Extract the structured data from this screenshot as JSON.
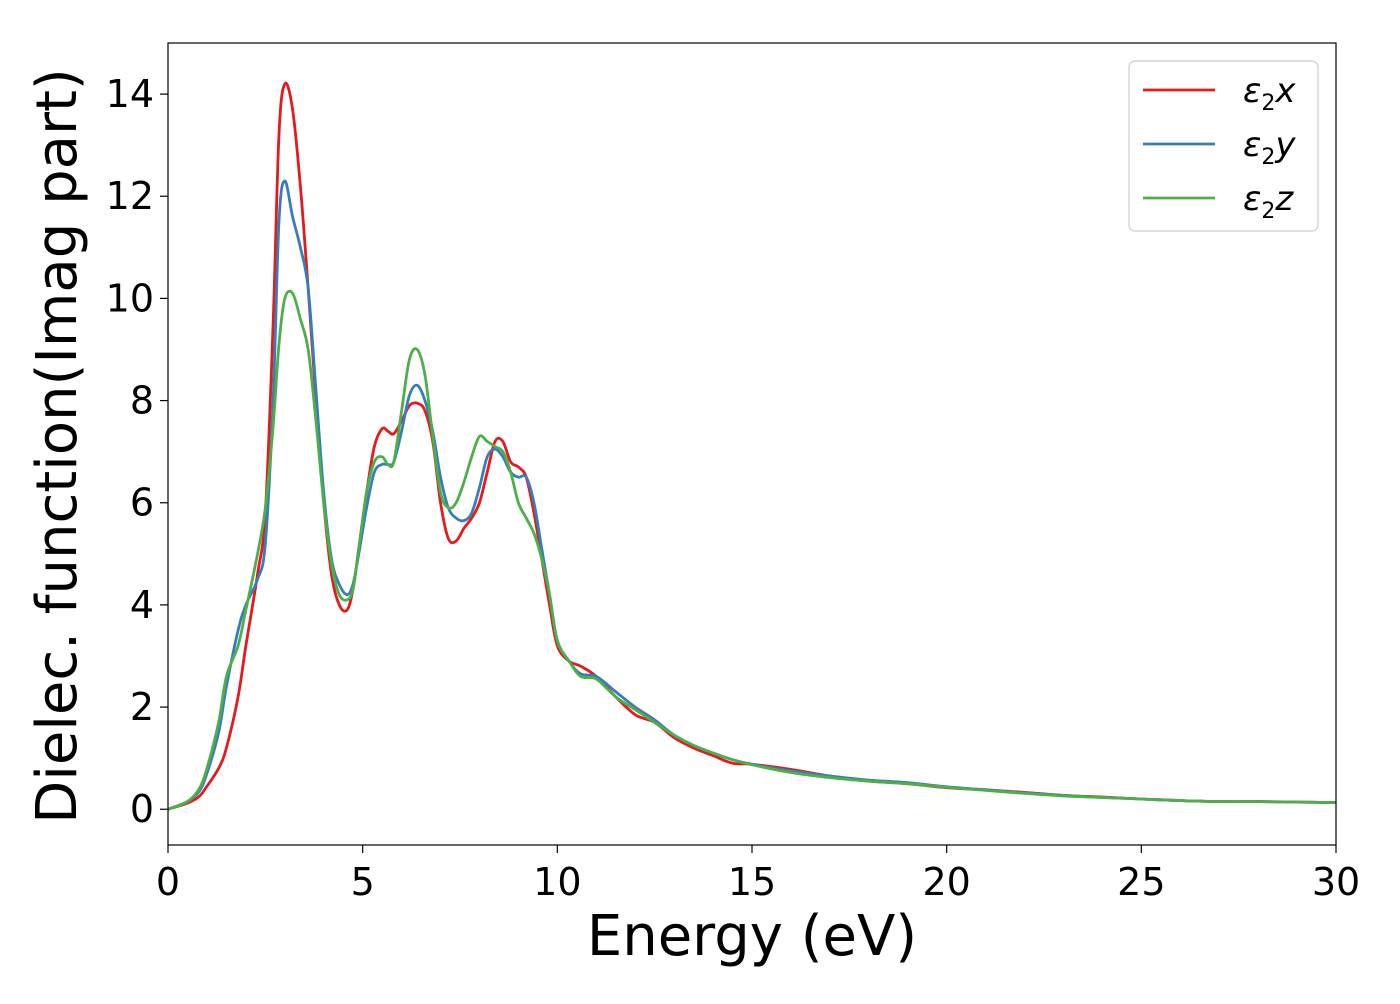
{
  "chart_data": {
    "type": "line",
    "title": "",
    "xlabel": "Energy (eV)",
    "ylabel": "Dielec. function(Imag part)",
    "xlim": [
      0,
      30
    ],
    "ylim": [
      -0.7,
      15
    ],
    "xticks": [
      0,
      5,
      10,
      15,
      20,
      25,
      30
    ],
    "yticks": [
      0,
      2,
      4,
      6,
      8,
      10,
      12,
      14
    ],
    "xtick_labels": [
      "0",
      "5",
      "10",
      "15",
      "20",
      "25",
      "30"
    ],
    "ytick_labels": [
      "0",
      "2",
      "4",
      "6",
      "8",
      "10",
      "12",
      "14"
    ],
    "grid": false,
    "legend_position": "top-right",
    "series": [
      {
        "name": "ε₂x",
        "label_main": "ε",
        "label_sub": "2",
        "label_tail": "x",
        "color": "#e41a1c",
        "x": [
          0,
          0.5,
          0.8,
          1.0,
          1.3,
          1.5,
          1.8,
          2.0,
          2.3,
          2.5,
          2.7,
          2.85,
          3.0,
          3.2,
          3.4,
          3.6,
          3.8,
          4.0,
          4.2,
          4.4,
          4.6,
          4.75,
          4.9,
          5.1,
          5.3,
          5.5,
          5.65,
          5.8,
          6.0,
          6.2,
          6.4,
          6.6,
          6.8,
          7.0,
          7.2,
          7.4,
          7.6,
          7.8,
          8.0,
          8.2,
          8.4,
          8.6,
          8.8,
          9.0,
          9.2,
          9.4,
          9.6,
          9.8,
          10.0,
          10.3,
          10.6,
          11.0,
          11.5,
          12.0,
          12.5,
          13.0,
          13.5,
          14.0,
          14.5,
          15.0,
          16.0,
          17.0,
          18.0,
          19.0,
          20.0,
          21.0,
          22.0,
          23.0,
          24.0,
          25.0,
          26.0,
          27.0,
          28.0,
          29.0,
          30.0
        ],
        "values": [
          0,
          0.12,
          0.25,
          0.45,
          0.8,
          1.2,
          2.2,
          3.2,
          4.6,
          5.8,
          9.5,
          13.2,
          14.2,
          13.7,
          12.2,
          10.2,
          8.0,
          6.0,
          4.6,
          4.0,
          3.9,
          4.3,
          5.1,
          6.2,
          7.1,
          7.45,
          7.4,
          7.35,
          7.6,
          7.9,
          7.95,
          7.8,
          7.2,
          6.0,
          5.3,
          5.25,
          5.5,
          5.7,
          6.0,
          6.6,
          7.2,
          7.2,
          6.8,
          6.7,
          6.5,
          5.8,
          4.9,
          4.0,
          3.2,
          2.9,
          2.8,
          2.6,
          2.2,
          1.85,
          1.7,
          1.4,
          1.2,
          1.05,
          0.9,
          0.88,
          0.78,
          0.65,
          0.55,
          0.5,
          0.42,
          0.38,
          0.33,
          0.27,
          0.24,
          0.2,
          0.17,
          0.15,
          0.15,
          0.14,
          0.13
        ]
      },
      {
        "name": "ε₂y",
        "label_main": "ε",
        "label_sub": "2",
        "label_tail": "y",
        "color": "#377eb8",
        "x": [
          0,
          0.5,
          0.8,
          1.0,
          1.3,
          1.5,
          1.8,
          2.0,
          2.3,
          2.5,
          2.7,
          2.85,
          3.0,
          3.2,
          3.4,
          3.6,
          3.8,
          4.0,
          4.2,
          4.4,
          4.6,
          4.75,
          4.9,
          5.1,
          5.3,
          5.5,
          5.65,
          5.8,
          6.0,
          6.2,
          6.4,
          6.6,
          6.8,
          7.0,
          7.2,
          7.4,
          7.6,
          7.8,
          8.0,
          8.2,
          8.4,
          8.6,
          8.8,
          9.0,
          9.2,
          9.4,
          9.6,
          9.8,
          10.0,
          10.3,
          10.6,
          11.0,
          11.5,
          12.0,
          12.5,
          13.0,
          13.5,
          14.0,
          14.5,
          15.0,
          16.0,
          17.0,
          18.0,
          19.0,
          20.0,
          21.0,
          22.0,
          23.0,
          24.0,
          25.0,
          26.0,
          27.0,
          28.0,
          29.0,
          30.0
        ],
        "values": [
          0,
          0.15,
          0.35,
          0.7,
          1.5,
          2.4,
          3.5,
          4.0,
          4.5,
          5.2,
          8.0,
          11.5,
          12.3,
          11.6,
          11.0,
          10.2,
          8.2,
          6.2,
          4.9,
          4.4,
          4.2,
          4.4,
          5.0,
          5.9,
          6.6,
          6.75,
          6.75,
          6.8,
          7.4,
          8.1,
          8.3,
          8.0,
          7.4,
          6.5,
          5.9,
          5.7,
          5.65,
          5.8,
          6.3,
          6.9,
          7.05,
          6.9,
          6.6,
          6.5,
          6.5,
          6.0,
          5.1,
          4.2,
          3.3,
          2.9,
          2.65,
          2.6,
          2.3,
          2.0,
          1.75,
          1.45,
          1.25,
          1.1,
          0.97,
          0.88,
          0.75,
          0.65,
          0.57,
          0.52,
          0.44,
          0.38,
          0.32,
          0.27,
          0.23,
          0.2,
          0.17,
          0.15,
          0.15,
          0.14,
          0.13
        ]
      },
      {
        "name": "ε₂z",
        "label_main": "ε",
        "label_sub": "2",
        "label_tail": "z",
        "color": "#4daf4a",
        "x": [
          0,
          0.5,
          0.8,
          1.0,
          1.3,
          1.5,
          1.8,
          2.0,
          2.3,
          2.5,
          2.7,
          2.85,
          3.0,
          3.2,
          3.4,
          3.6,
          3.8,
          4.0,
          4.2,
          4.4,
          4.6,
          4.75,
          4.9,
          5.1,
          5.3,
          5.5,
          5.65,
          5.8,
          6.0,
          6.2,
          6.4,
          6.6,
          6.8,
          7.0,
          7.2,
          7.4,
          7.6,
          7.8,
          8.0,
          8.2,
          8.4,
          8.6,
          8.8,
          9.0,
          9.2,
          9.4,
          9.6,
          9.8,
          10.0,
          10.3,
          10.6,
          11.0,
          11.5,
          12.0,
          12.5,
          13.0,
          13.5,
          14.0,
          14.5,
          15.0,
          16.0,
          17.0,
          18.0,
          19.0,
          20.0,
          21.0,
          22.0,
          23.0,
          24.0,
          25.0,
          26.0,
          27.0,
          28.0,
          29.0,
          30.0
        ],
        "values": [
          0,
          0.15,
          0.4,
          0.8,
          1.7,
          2.6,
          3.2,
          3.9,
          5.0,
          5.9,
          7.5,
          9.1,
          10.0,
          10.1,
          9.6,
          9.0,
          7.6,
          6.0,
          4.8,
          4.2,
          4.1,
          4.3,
          5.1,
          6.2,
          6.8,
          6.9,
          6.75,
          6.8,
          7.8,
          8.8,
          9.0,
          8.5,
          7.3,
          6.2,
          5.9,
          6.0,
          6.4,
          6.9,
          7.3,
          7.2,
          7.1,
          7.0,
          6.6,
          6.0,
          5.7,
          5.4,
          4.9,
          4.2,
          3.3,
          2.9,
          2.6,
          2.55,
          2.2,
          1.95,
          1.7,
          1.45,
          1.25,
          1.1,
          0.97,
          0.87,
          0.72,
          0.62,
          0.55,
          0.5,
          0.43,
          0.37,
          0.31,
          0.26,
          0.23,
          0.2,
          0.17,
          0.15,
          0.15,
          0.14,
          0.13
        ]
      }
    ]
  }
}
